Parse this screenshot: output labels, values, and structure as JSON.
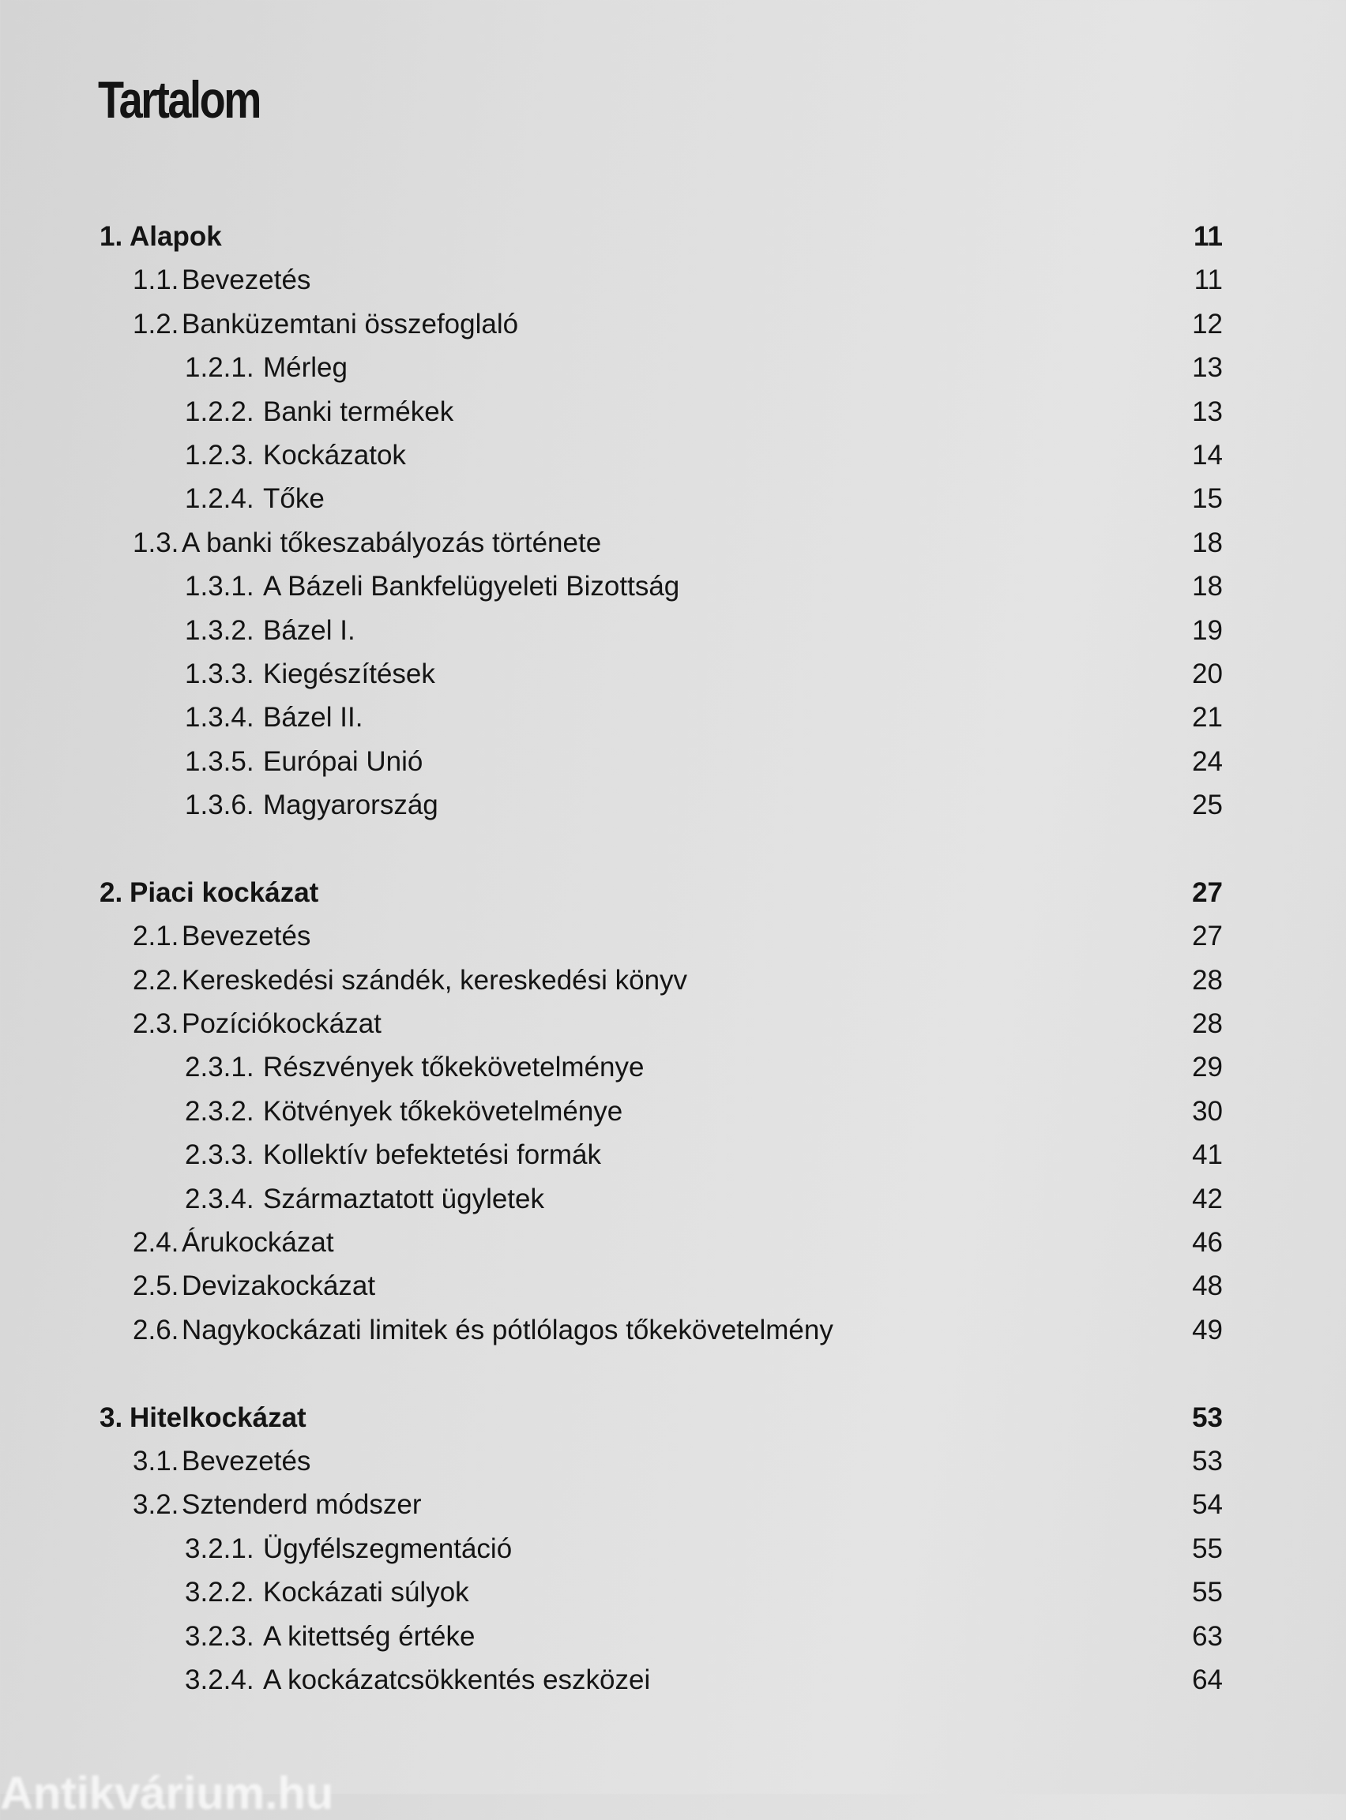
{
  "title": "Tartalom",
  "toc": [
    {
      "level": 0,
      "num": "1.",
      "text": "Alapok",
      "page": "11"
    },
    {
      "level": 1,
      "num": "1.1.",
      "text": "Bevezetés",
      "page": "11"
    },
    {
      "level": 1,
      "num": "1.2.",
      "text": "Banküzemtani összefoglaló",
      "page": "12"
    },
    {
      "level": 2,
      "num": "1.2.1.",
      "text": "Mérleg",
      "page": "13"
    },
    {
      "level": 2,
      "num": "1.2.2.",
      "text": "Banki termékek",
      "page": "13"
    },
    {
      "level": 2,
      "num": "1.2.3.",
      "text": "Kockázatok",
      "page": "14"
    },
    {
      "level": 2,
      "num": "1.2.4.",
      "text": "Tőke",
      "page": "15"
    },
    {
      "level": 1,
      "num": "1.3.",
      "text": "A banki tőkeszabályozás története",
      "page": "18"
    },
    {
      "level": 2,
      "num": "1.3.1.",
      "text": "A Bázeli Bankfelügyeleti Bizottság",
      "page": "18"
    },
    {
      "level": 2,
      "num": "1.3.2.",
      "text": "Bázel I.",
      "page": "19"
    },
    {
      "level": 2,
      "num": "1.3.3.",
      "text": "Kiegészítések",
      "page": "20"
    },
    {
      "level": 2,
      "num": "1.3.4.",
      "text": "Bázel II.",
      "page": "21"
    },
    {
      "level": 2,
      "num": "1.3.5.",
      "text": "Európai Unió",
      "page": "24"
    },
    {
      "level": 2,
      "num": "1.3.6.",
      "text": "Magyarország",
      "page": "25"
    },
    {
      "gap": true
    },
    {
      "level": 0,
      "num": "2.",
      "text": "Piaci kockázat",
      "page": "27"
    },
    {
      "level": 1,
      "num": "2.1.",
      "text": "Bevezetés",
      "page": "27"
    },
    {
      "level": 1,
      "num": "2.2.",
      "text": "Kereskedési szándék, kereskedési könyv",
      "page": "28"
    },
    {
      "level": 1,
      "num": "2.3.",
      "text": "Pozíciókockázat",
      "page": "28"
    },
    {
      "level": 2,
      "num": "2.3.1.",
      "text": "Részvények tőkekövetelménye",
      "page": "29"
    },
    {
      "level": 2,
      "num": "2.3.2.",
      "text": "Kötvények tőkekövetelménye",
      "page": "30"
    },
    {
      "level": 2,
      "num": "2.3.3.",
      "text": "Kollektív befektetési formák",
      "page": "41"
    },
    {
      "level": 2,
      "num": "2.3.4.",
      "text": "Származtatott ügyletek",
      "page": "42"
    },
    {
      "level": 1,
      "num": "2.4.",
      "text": "Árukockázat",
      "page": "46"
    },
    {
      "level": 1,
      "num": "2.5.",
      "text": "Devizakockázat",
      "page": "48"
    },
    {
      "level": 1,
      "num": "2.6.",
      "text": "Nagykockázati limitek és pótlólagos tőkekövetelmény",
      "page": "49"
    },
    {
      "gap": true
    },
    {
      "level": 0,
      "num": "3.",
      "text": "Hitelkockázat",
      "page": "53"
    },
    {
      "level": 1,
      "num": "3.1.",
      "text": "Bevezetés",
      "page": "53"
    },
    {
      "level": 1,
      "num": "3.2.",
      "text": "Sztenderd módszer",
      "page": "54"
    },
    {
      "level": 2,
      "num": "3.2.1.",
      "text": "Ügyfélszegmentáció",
      "page": "55"
    },
    {
      "level": 2,
      "num": "3.2.2.",
      "text": "Kockázati súlyok",
      "page": "55"
    },
    {
      "level": 2,
      "num": "3.2.3.",
      "text": "A kitettség értéke",
      "page": "63"
    },
    {
      "level": 2,
      "num": "3.2.4.",
      "text": "A kockázatcsökkentés eszközei",
      "page": "64"
    }
  ],
  "watermark": "Antikvárium.hu"
}
